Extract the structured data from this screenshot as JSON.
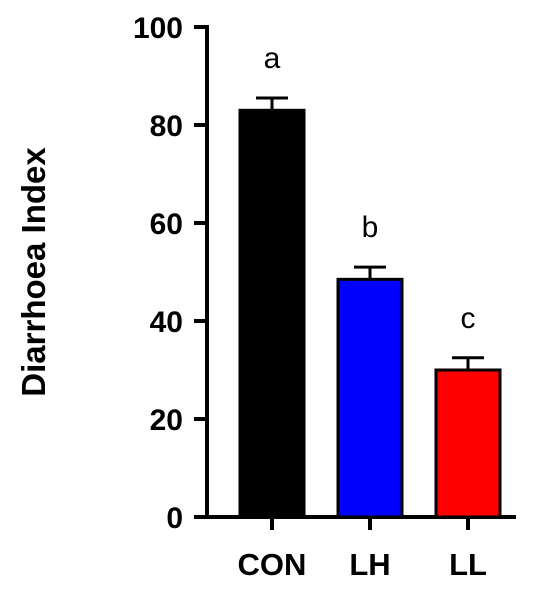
{
  "chart_data": {
    "type": "bar",
    "title": "",
    "xlabel": "",
    "ylabel": "Diarrhoea Index",
    "ylim": [
      0,
      100
    ],
    "yticks": [
      0,
      20,
      40,
      60,
      80,
      100
    ],
    "categories": [
      "CON",
      "LH",
      "LL"
    ],
    "values": [
      83,
      48.5,
      30
    ],
    "errors": [
      2.5,
      2.5,
      2.5
    ],
    "significance_labels": [
      "a",
      "b",
      "c"
    ],
    "colors": [
      "#000000",
      "#0000ff",
      "#ff0000"
    ],
    "grid": false,
    "legend": "none"
  }
}
